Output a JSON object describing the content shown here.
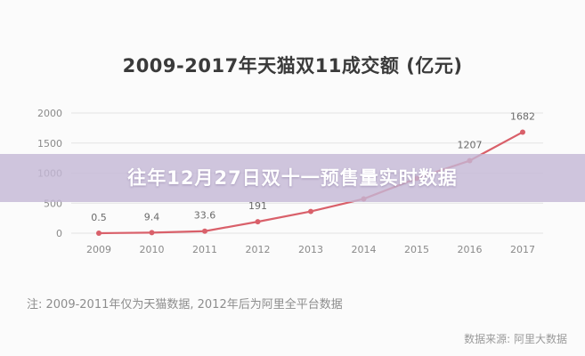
{
  "banner": {
    "text": "往年12月27日双十一预售量实时数据"
  },
  "note": "注: 2009-2011年仅为天猫数据, 2012年后为阿里全平台数据",
  "source": "数据来源: 阿里大数据",
  "colors": {
    "line": "#d9606a",
    "point": "#d9606a",
    "grid": "#e3e3e3",
    "banner": "#c4b8d6"
  },
  "chart_data": {
    "type": "line",
    "title": "2009-2017年天猫双11成交额 (亿元)",
    "categories": [
      "2009",
      "2010",
      "2011",
      "2012",
      "2013",
      "2014",
      "2015",
      "2016",
      "2017"
    ],
    "series": [
      {
        "values": [
          0.5,
          9.4,
          33.6,
          191,
          362,
          571,
          912,
          1207,
          1682
        ],
        "data_labels": [
          "0.5",
          "9.4",
          "33.6",
          "191",
          "",
          "",
          "",
          "1207",
          "1682"
        ]
      }
    ],
    "yticks": [
      "0",
      "500",
      "1000",
      "1500",
      "2000"
    ],
    "ylim": [
      0,
      2000
    ],
    "grid": true
  }
}
